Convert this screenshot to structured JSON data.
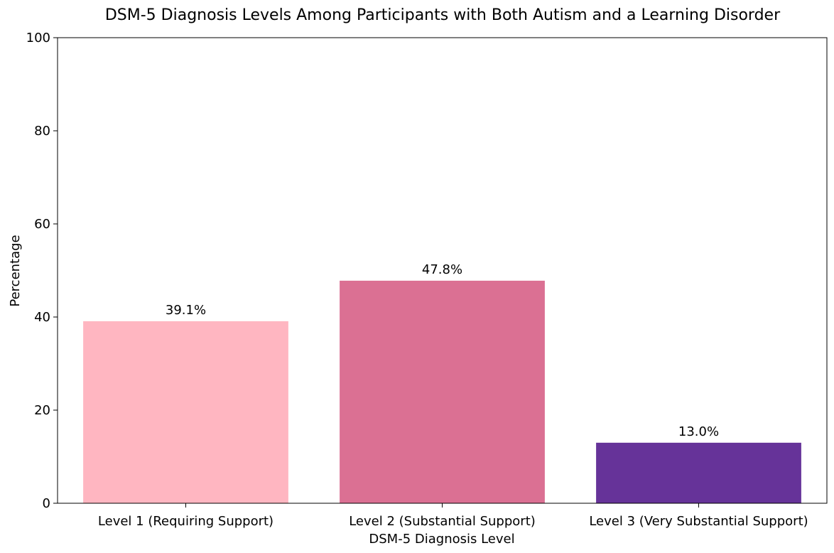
{
  "chart_data": {
    "type": "bar",
    "title": "DSM-5 Diagnosis Levels Among Participants with Both Autism and a Learning Disorder",
    "xlabel": "DSM-5 Diagnosis Level",
    "ylabel": "Percentage",
    "categories": [
      "Level 1 (Requiring Support)",
      "Level 2 (Substantial Support)",
      "Level 3 (Very Substantial Support)"
    ],
    "values": [
      39.1,
      47.8,
      13.0
    ],
    "value_labels": [
      "39.1%",
      "47.8%",
      "13.0%"
    ],
    "colors": [
      "#ffb6c1",
      "#db7093",
      "#663399"
    ],
    "ylim": [
      0,
      100
    ],
    "yticks": [
      0,
      20,
      40,
      60,
      80,
      100
    ],
    "ytick_labels": [
      "0",
      "20",
      "40",
      "60",
      "80",
      "100"
    ],
    "grid": false
  }
}
